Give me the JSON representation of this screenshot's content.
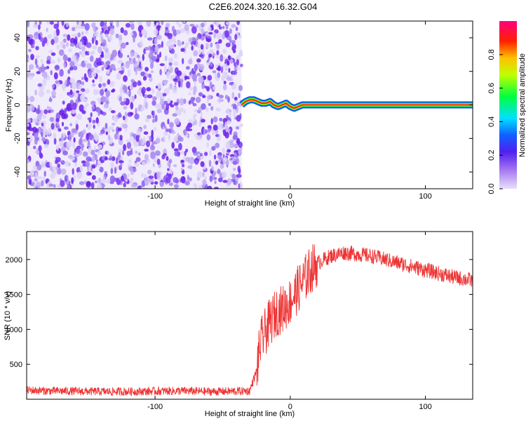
{
  "title": "C2E6.2024.320.16.32.G04",
  "chart_data": [
    {
      "type": "heatmap",
      "xlabel": "Height of straight line (km)",
      "ylabel": "Frequency (Hz)",
      "xlim": [
        -195,
        135
      ],
      "ylim": [
        -50,
        50
      ],
      "x_ticks": [
        -100,
        0,
        100
      ],
      "y_ticks": [
        -40,
        -20,
        0,
        20,
        40
      ],
      "colorbar": {
        "label": "Normalized spectral amplitude",
        "range": [
          0,
          1
        ],
        "ticks": [
          0.0,
          0.2,
          0.4,
          0.6,
          0.8
        ],
        "colors": [
          "#e0d8f8",
          "#7a30f0",
          "#2050ff",
          "#00e0ff",
          "#00ff40",
          "#c0ff00",
          "#ffc000",
          "#ff2000",
          "#ff0080"
        ]
      },
      "noise_region_x": [
        -195,
        -36
      ],
      "signal_track": {
        "x": [
          -36,
          -33,
          -30,
          -27,
          -24,
          -21,
          -18,
          -15,
          -12,
          -9,
          -6,
          -3,
          0,
          3,
          6,
          9,
          15,
          30,
          60,
          90,
          120,
          135
        ],
        "y": [
          0,
          2,
          3,
          3,
          2,
          1,
          1,
          2,
          0,
          -1,
          0,
          1,
          -1,
          -2,
          -1,
          0,
          0,
          0,
          0,
          0,
          0,
          0
        ]
      }
    },
    {
      "type": "line",
      "xlabel": "Height of straight line (km)",
      "ylabel": "SNR (10 * v/v)",
      "xlim": [
        -195,
        135
      ],
      "ylim": [
        0,
        2400
      ],
      "x_ticks": [
        -100,
        0,
        100
      ],
      "y_ticks": [
        500,
        1000,
        1500,
        2000
      ],
      "color": "#ee3333",
      "x": [
        -195,
        -180,
        -160,
        -140,
        -120,
        -100,
        -80,
        -60,
        -40,
        -30,
        -25,
        -22,
        -20,
        -15,
        -10,
        -5,
        0,
        5,
        10,
        15,
        20,
        30,
        40,
        60,
        80,
        100,
        120,
        135
      ],
      "y": [
        130,
        120,
        115,
        110,
        110,
        115,
        120,
        110,
        115,
        120,
        400,
        800,
        900,
        1100,
        1250,
        1300,
        1400,
        1550,
        1700,
        1850,
        1950,
        2050,
        2100,
        2050,
        1950,
        1850,
        1750,
        1700
      ],
      "noise_amplitude": 60
    }
  ]
}
